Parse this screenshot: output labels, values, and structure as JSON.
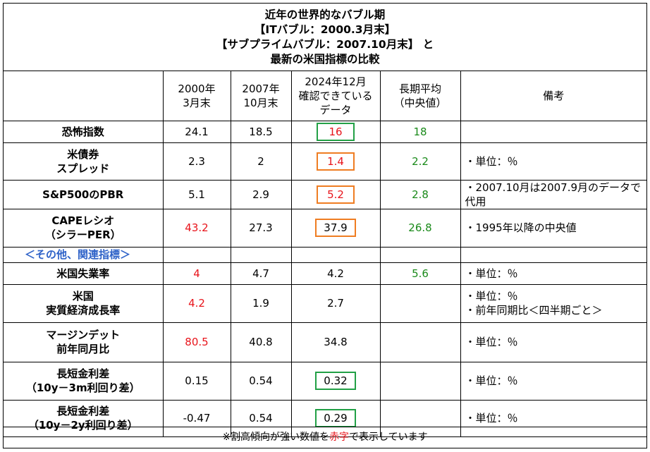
{
  "title": {
    "line1": "近年の世界的なバブル期",
    "line2": "【ITバブル：2000.3月末】",
    "line3": "【サブプライムバブル：2007.10月末】 と",
    "line4": "最新の米国指標の比較"
  },
  "headers": {
    "col1_l1": "2000年",
    "col1_l2": "3月末",
    "col2_l1": "2007年",
    "col2_l2": "10月末",
    "col3_l1": "2024年12月",
    "col3_l2": "確認できている",
    "col3_l3": "データ",
    "col4_l1": "長期平均",
    "col4_l2": "（中央値）",
    "col5": "備考"
  },
  "rows": [
    {
      "l1": "恐怖指数",
      "l2": "",
      "v2000": "24.1",
      "v2007": "18.5",
      "v2024": "16",
      "avg": "18",
      "note": ""
    },
    {
      "l1": "米債券",
      "l2": "スプレッド",
      "v2000": "2.3",
      "v2007": "2",
      "v2024": "1.4",
      "avg": "2.2",
      "note": "・単位：％"
    },
    {
      "l1": "S&P500のPBR",
      "l2": "",
      "v2000": "5.1",
      "v2007": "2.9",
      "v2024": "5.2",
      "avg": "2.8",
      "note": "・2007.10月は2007.9月のデータで代用"
    },
    {
      "l1": "CAPEレシオ",
      "l2": "（シラーPER）",
      "v2000": "43.2",
      "v2007": "27.3",
      "v2024": "37.9",
      "avg": "26.8",
      "note": "・1995年以降の中央値"
    },
    {
      "l1": "米国失業率",
      "l2": "",
      "v2000": "4",
      "v2007": "4.7",
      "v2024": "4.2",
      "avg": "5.6",
      "note": "・単位：％"
    },
    {
      "l1": "米国",
      "l2": "実質経済成長率",
      "v2000": "4.2",
      "v2007": "1.9",
      "v2024": "2.7",
      "avg": "",
      "note": "・単位：％",
      "note2": "・前年同期比＜四半期ごと＞"
    },
    {
      "l1": "マージンデット",
      "l2": "前年同月比",
      "v2000": "80.5",
      "v2007": "40.8",
      "v2024": "34.8",
      "avg": "",
      "note": "・単位：％"
    },
    {
      "l1": "長短金利差",
      "l2": "（10y－3m利回り差）",
      "v2000": "0.15",
      "v2007": "0.54",
      "v2024": "0.32",
      "avg": "",
      "note": "・単位：％"
    },
    {
      "l1": "長短金利差",
      "l2": "（10y－2y利回り差）",
      "v2000": "-0.47",
      "v2007": "0.54",
      "v2024": "0.29",
      "avg": "",
      "note": "・単位：％"
    }
  ],
  "section_label": "＜その他、関連指標＞",
  "footer": {
    "pre": "※割高傾向が強い数値を",
    "red": "赤字",
    "post": "で表示しています"
  },
  "colors": {
    "red": "#e8141b",
    "green": "#1a8a1a",
    "blue": "#2e62c8",
    "box_green": "#22a046",
    "box_orange": "#ef7d22"
  }
}
